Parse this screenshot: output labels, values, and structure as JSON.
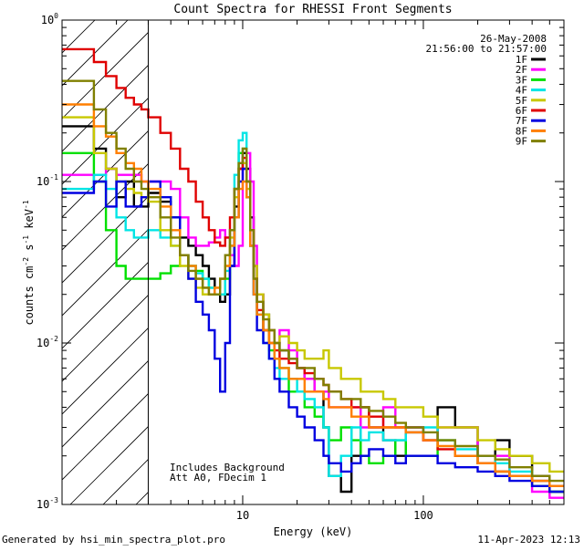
{
  "chart_data": {
    "type": "line",
    "title": "Count Spectra for RHESSI Front Segments",
    "xlabel": "Energy (keV)",
    "ylabel_parts": {
      "main": "counts cm",
      "exp1": "-2",
      "s": " s",
      "exp2": "-1",
      "kev": " keV",
      "exp3": "-1"
    },
    "xscale": "log",
    "yscale": "log",
    "xlim": [
      1.0,
      600
    ],
    "ylim": [
      0.001,
      1.0
    ],
    "x_ticks": [
      {
        "value": 10,
        "label": "10"
      },
      {
        "value": 100,
        "label": "100"
      }
    ],
    "y_ticks": [
      {
        "value": 1.0,
        "base": "10",
        "exp": "0"
      },
      {
        "value": 0.1,
        "base": "10",
        "exp": "-1"
      },
      {
        "value": 0.01,
        "base": "10",
        "exp": "-2"
      },
      {
        "value": 0.001,
        "base": "10",
        "exp": "-3"
      }
    ],
    "hatched_region": [
      1.0,
      3.0
    ],
    "annotation_top": [
      "26-May-2008",
      "21:56:00 to 21:57:00"
    ],
    "annotation_bottom": [
      "Includes Background",
      "Att A0, FDecim 1"
    ],
    "x": [
      1.0,
      1.25,
      1.5,
      1.75,
      2.0,
      2.25,
      2.5,
      2.75,
      3.0,
      3.5,
      4.0,
      4.5,
      5.0,
      5.5,
      6.0,
      6.5,
      7.0,
      7.5,
      8.0,
      8.5,
      9.0,
      9.5,
      10.0,
      10.5,
      11.0,
      11.5,
      12.0,
      13.0,
      14.0,
      15.0,
      16.0,
      18.0,
      20.0,
      22.0,
      25.0,
      28.0,
      30.0,
      35.0,
      40.0,
      45.0,
      50.0,
      60.0,
      70.0,
      80.0,
      100.0,
      120.0,
      150.0,
      200.0,
      250.0,
      300.0,
      400.0,
      500.0,
      600.0
    ],
    "series": [
      {
        "name": "1F",
        "color": "#000000",
        "values": [
          0.22,
          0.22,
          0.16,
          0.12,
          0.08,
          0.1,
          0.07,
          0.07,
          0.085,
          0.075,
          0.06,
          0.045,
          0.04,
          0.035,
          0.03,
          0.025,
          0.02,
          0.018,
          0.02,
          0.03,
          0.07,
          0.12,
          0.15,
          0.12,
          0.06,
          0.03,
          0.02,
          0.015,
          0.012,
          0.01,
          0.009,
          0.008,
          0.007,
          0.006,
          0.005,
          0.003,
          0.0015,
          0.0012,
          0.002,
          0.004,
          0.003,
          0.0025,
          0.002,
          0.003,
          0.0025,
          0.004,
          0.003,
          0.002,
          0.0025,
          0.002,
          0.0015,
          0.0012,
          0.0012
        ]
      },
      {
        "name": "2F",
        "color": "#ff00ff",
        "values": [
          0.11,
          0.11,
          0.11,
          0.12,
          0.11,
          0.11,
          0.11,
          0.1,
          0.1,
          0.1,
          0.09,
          0.06,
          0.045,
          0.04,
          0.04,
          0.042,
          0.045,
          0.05,
          0.045,
          0.035,
          0.03,
          0.04,
          0.12,
          0.15,
          0.1,
          0.04,
          0.02,
          0.012,
          0.012,
          0.01,
          0.012,
          0.009,
          0.007,
          0.006,
          0.005,
          0.005,
          0.004,
          0.004,
          0.004,
          0.003,
          0.003,
          0.004,
          0.003,
          0.003,
          0.0025,
          0.003,
          0.003,
          0.002,
          0.002,
          0.0015,
          0.0012,
          0.0011,
          0.0011
        ]
      },
      {
        "name": "3F",
        "color": "#00e000",
        "values": [
          0.15,
          0.15,
          0.1,
          0.05,
          0.03,
          0.025,
          0.025,
          0.025,
          0.025,
          0.027,
          0.03,
          0.035,
          0.03,
          0.028,
          0.025,
          0.022,
          0.02,
          0.02,
          0.025,
          0.04,
          0.09,
          0.15,
          0.16,
          0.08,
          0.04,
          0.02,
          0.015,
          0.012,
          0.009,
          0.008,
          0.007,
          0.005,
          0.005,
          0.004,
          0.0035,
          0.003,
          0.0025,
          0.003,
          0.0025,
          0.002,
          0.0018,
          0.002,
          0.0025,
          0.002,
          0.002,
          0.0025,
          0.002,
          0.0018,
          0.0016,
          0.0015,
          0.0013,
          0.0012,
          0.0012
        ]
      },
      {
        "name": "4F",
        "color": "#00e5e5",
        "values": [
          0.09,
          0.09,
          0.11,
          0.09,
          0.06,
          0.05,
          0.045,
          0.045,
          0.05,
          0.045,
          0.04,
          0.035,
          0.03,
          0.027,
          0.025,
          0.022,
          0.02,
          0.02,
          0.028,
          0.05,
          0.11,
          0.18,
          0.2,
          0.1,
          0.04,
          0.02,
          0.015,
          0.01,
          0.008,
          0.007,
          0.006,
          0.006,
          0.005,
          0.0045,
          0.004,
          0.003,
          0.0015,
          0.002,
          0.003,
          0.0025,
          0.0028,
          0.0025,
          0.0025,
          0.0028,
          0.003,
          0.0025,
          0.0022,
          0.002,
          0.0018,
          0.0016,
          0.0014,
          0.0013,
          0.0013
        ]
      },
      {
        "name": "5F",
        "color": "#c8c800",
        "values": [
          0.25,
          0.25,
          0.15,
          0.12,
          0.1,
          0.09,
          0.085,
          0.08,
          0.075,
          0.05,
          0.04,
          0.03,
          0.025,
          0.022,
          0.02,
          0.02,
          0.022,
          0.025,
          0.03,
          0.045,
          0.08,
          0.12,
          0.13,
          0.09,
          0.05,
          0.03,
          0.02,
          0.015,
          0.012,
          0.01,
          0.011,
          0.01,
          0.009,
          0.008,
          0.008,
          0.009,
          0.007,
          0.006,
          0.006,
          0.005,
          0.005,
          0.0045,
          0.004,
          0.004,
          0.0035,
          0.003,
          0.003,
          0.0025,
          0.0022,
          0.002,
          0.0018,
          0.0016,
          0.0016
        ]
      },
      {
        "name": "6F",
        "color": "#e00000",
        "values": [
          0.66,
          0.66,
          0.55,
          0.45,
          0.38,
          0.33,
          0.3,
          0.28,
          0.25,
          0.2,
          0.16,
          0.12,
          0.1,
          0.075,
          0.06,
          0.05,
          0.042,
          0.04,
          0.045,
          0.06,
          0.09,
          0.12,
          0.14,
          0.1,
          0.05,
          0.025,
          0.016,
          0.012,
          0.01,
          0.009,
          0.008,
          0.0075,
          0.007,
          0.0065,
          0.006,
          0.0055,
          0.005,
          0.0045,
          0.004,
          0.004,
          0.0035,
          0.003,
          0.003,
          0.0028,
          0.0025,
          0.0022,
          0.002,
          0.0018,
          0.0016,
          0.0015,
          0.0014,
          0.0013,
          0.0013
        ]
      },
      {
        "name": "7F",
        "color": "#0000e0",
        "values": [
          0.085,
          0.085,
          0.1,
          0.07,
          0.1,
          0.07,
          0.07,
          0.08,
          0.1,
          0.08,
          0.06,
          0.035,
          0.025,
          0.018,
          0.015,
          0.012,
          0.008,
          0.005,
          0.01,
          0.03,
          0.06,
          0.1,
          0.12,
          0.08,
          0.04,
          0.02,
          0.012,
          0.01,
          0.008,
          0.006,
          0.005,
          0.004,
          0.0035,
          0.003,
          0.0025,
          0.002,
          0.0018,
          0.0016,
          0.0018,
          0.002,
          0.0022,
          0.002,
          0.0018,
          0.002,
          0.002,
          0.0018,
          0.0017,
          0.0016,
          0.0015,
          0.0014,
          0.0013,
          0.0012,
          0.0012
        ]
      },
      {
        "name": "8F",
        "color": "#ff7f00",
        "values": [
          0.3,
          0.3,
          0.22,
          0.19,
          0.15,
          0.13,
          0.12,
          0.1,
          0.09,
          0.07,
          0.05,
          0.035,
          0.03,
          0.025,
          0.022,
          0.02,
          0.022,
          0.025,
          0.03,
          0.04,
          0.06,
          0.09,
          0.1,
          0.08,
          0.04,
          0.02,
          0.015,
          0.012,
          0.01,
          0.008,
          0.007,
          0.006,
          0.006,
          0.005,
          0.005,
          0.0045,
          0.004,
          0.004,
          0.0035,
          0.0035,
          0.003,
          0.003,
          0.003,
          0.0028,
          0.0025,
          0.0023,
          0.002,
          0.0018,
          0.0016,
          0.0015,
          0.0014,
          0.0013,
          0.0013
        ]
      },
      {
        "name": "9F",
        "color": "#808000",
        "values": [
          0.42,
          0.42,
          0.28,
          0.2,
          0.16,
          0.12,
          0.1,
          0.09,
          0.08,
          0.06,
          0.045,
          0.035,
          0.028,
          0.025,
          0.022,
          0.02,
          0.02,
          0.025,
          0.035,
          0.05,
          0.09,
          0.13,
          0.16,
          0.1,
          0.05,
          0.025,
          0.018,
          0.014,
          0.012,
          0.01,
          0.009,
          0.008,
          0.007,
          0.007,
          0.006,
          0.0055,
          0.005,
          0.0045,
          0.0045,
          0.004,
          0.0038,
          0.0035,
          0.0032,
          0.003,
          0.0028,
          0.0025,
          0.0023,
          0.002,
          0.0019,
          0.0017,
          0.0015,
          0.0014,
          0.0014
        ]
      }
    ]
  },
  "footer": {
    "left": "Generated by hsi_min_spectra_plot.pro",
    "right": "11-Apr-2023 12:13"
  }
}
